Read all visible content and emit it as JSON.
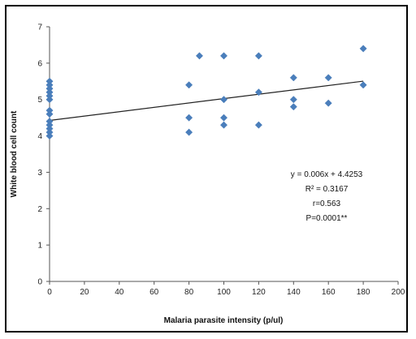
{
  "chart_data": {
    "type": "scatter",
    "title": "",
    "xlabel": "Malaria parasite intensity (p/ul)",
    "ylabel": "White blood cell count",
    "xlim": [
      0,
      200
    ],
    "ylim": [
      0,
      7
    ],
    "x_ticks": [
      0,
      20,
      40,
      60,
      80,
      100,
      120,
      140,
      160,
      180,
      200
    ],
    "y_ticks": [
      0,
      1,
      2,
      3,
      4,
      5,
      6,
      7
    ],
    "x_tick_labels": [
      "0",
      "20",
      "40",
      "60",
      "80",
      "100",
      "120",
      "140",
      "160",
      "180",
      "200"
    ],
    "y_tick_labels": [
      "0",
      "1",
      "2",
      "3",
      "4",
      "5",
      "6",
      "7"
    ],
    "grid": false,
    "legend": "none",
    "marker_color": "#4a7ebb",
    "series": [
      {
        "points": [
          [
            0,
            5.5
          ],
          [
            0,
            5.4
          ],
          [
            0,
            5.3
          ],
          [
            0,
            5.2
          ],
          [
            0,
            5.1
          ],
          [
            0,
            5.0
          ],
          [
            0,
            4.7
          ],
          [
            0,
            4.6
          ],
          [
            0,
            4.4
          ],
          [
            0,
            4.3
          ],
          [
            0,
            4.2
          ],
          [
            0,
            4.1
          ],
          [
            0,
            4.0
          ],
          [
            80,
            5.4
          ],
          [
            80,
            4.5
          ],
          [
            80,
            4.1
          ],
          [
            86,
            6.2
          ],
          [
            100,
            6.2
          ],
          [
            100,
            5.0
          ],
          [
            100,
            4.5
          ],
          [
            100,
            4.3
          ],
          [
            120,
            6.2
          ],
          [
            120,
            5.2
          ],
          [
            120,
            4.3
          ],
          [
            140,
            5.6
          ],
          [
            140,
            5.0
          ],
          [
            140,
            4.8
          ],
          [
            160,
            5.6
          ],
          [
            160,
            4.9
          ],
          [
            180,
            6.4
          ],
          [
            180,
            5.4
          ]
        ]
      }
    ],
    "trendline": {
      "slope": 0.006,
      "intercept": 4.4253,
      "x_range": [
        0,
        180
      ],
      "color": "#222222"
    },
    "annotations": [
      "y = 0.006x + 4.4253",
      "R² = 0.3167",
      "r=0.563",
      "P=0.0001**"
    ]
  }
}
